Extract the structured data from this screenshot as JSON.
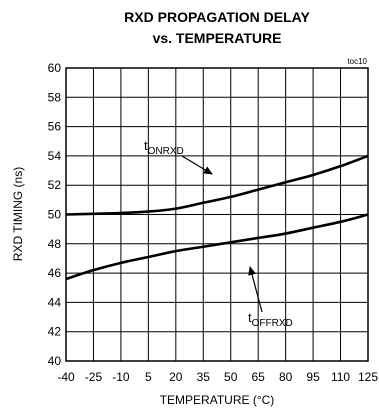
{
  "chart_data": {
    "type": "line",
    "title": "RXD PROPAGATION DELAY",
    "subtitle": "vs. TEMPERATURE",
    "tag": "toc10",
    "xlabel": "TEMPERATURE (°C)",
    "ylabel": "RXD TIMING (ns)",
    "xlim": [
      -40,
      125
    ],
    "ylim": [
      40,
      60
    ],
    "x_ticks": [
      -40,
      -25,
      -10,
      5,
      20,
      35,
      50,
      65,
      80,
      95,
      110,
      125
    ],
    "x_tick_labels": [
      "-40",
      "-25",
      "-10",
      "5",
      "20",
      "35",
      "50",
      "65",
      "80",
      "95",
      "110",
      "125"
    ],
    "y_ticks": [
      40,
      42,
      44,
      46,
      48,
      50,
      52,
      54,
      56,
      58,
      60
    ],
    "y_tick_labels": [
      "40",
      "42",
      "44",
      "46",
      "48",
      "50",
      "52",
      "54",
      "56",
      "58",
      "60"
    ],
    "grid": true,
    "series": [
      {
        "name": "tONRXD",
        "label_main": "t",
        "label_sub": "ONRXD",
        "x": [
          -40,
          -25,
          -10,
          5,
          20,
          35,
          50,
          65,
          80,
          95,
          110,
          125
        ],
        "values": [
          50.0,
          50.05,
          50.1,
          50.2,
          50.4,
          50.8,
          51.2,
          51.7,
          52.2,
          52.7,
          53.3,
          54.0
        ]
      },
      {
        "name": "tOFFRXD",
        "label_main": "t",
        "label_sub": "OFFRXD",
        "x": [
          -40,
          -25,
          -10,
          5,
          20,
          35,
          50,
          65,
          80,
          95,
          110,
          125
        ],
        "values": [
          45.6,
          46.2,
          46.7,
          47.1,
          47.5,
          47.8,
          48.1,
          48.4,
          48.7,
          49.1,
          49.5,
          50.0
        ]
      }
    ]
  }
}
